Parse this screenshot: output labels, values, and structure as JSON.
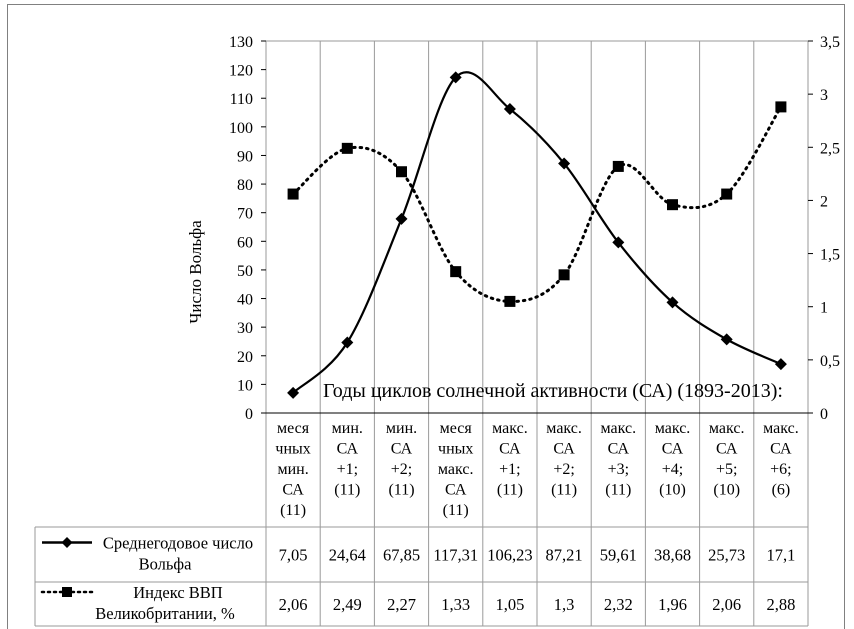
{
  "chart_data": {
    "type": "line",
    "title": "",
    "x_title": "Годы циклов солнечной активности (СА) (1893-2013):",
    "ylabel": "Число Вольфа",
    "ylim": [
      0,
      130
    ],
    "y_ticks": [
      0,
      10,
      20,
      30,
      40,
      50,
      60,
      70,
      80,
      90,
      100,
      110,
      120,
      130
    ],
    "y2lim": [
      0,
      3.5
    ],
    "y2_ticks": [
      "0",
      "0,5",
      "1",
      "1,5",
      "2",
      "2,5",
      "3",
      "3,5"
    ],
    "grid": "vertical",
    "categories": [
      [
        "меся",
        "чных",
        "мин.",
        "СА",
        "(11)"
      ],
      [
        "мин.",
        "СА",
        "+1;",
        "(11)"
      ],
      [
        "мин.",
        "СА",
        "+2;",
        "(11)"
      ],
      [
        "меся",
        "чных",
        "макс.",
        "СА",
        "(11)"
      ],
      [
        "макс.",
        "СА",
        "+1;",
        "(11)"
      ],
      [
        "макс.",
        "СА",
        "+2;",
        "(11)"
      ],
      [
        "макс.",
        "СА",
        "+3;",
        "(11)"
      ],
      [
        "макс.",
        "СА",
        "+4;",
        "(10)"
      ],
      [
        "макс.",
        "СА",
        "+5;",
        "(10)"
      ],
      [
        "макс.",
        "СА",
        "+6;",
        "(6)"
      ]
    ],
    "series": [
      {
        "name": [
          "Среднегодовое число",
          "Вольфа"
        ],
        "axis": "left",
        "marker": "diamond",
        "line": "solid",
        "values": [
          7.05,
          24.64,
          67.85,
          117.31,
          106.23,
          87.21,
          59.61,
          38.68,
          25.73,
          17.1
        ],
        "labels": [
          "7,05",
          "24,64",
          "67,85",
          "117,31",
          "106,23",
          "87,21",
          "59,61",
          "38,68",
          "25,73",
          "17,1"
        ]
      },
      {
        "name": [
          "Индекс ВВП",
          "Великобритании, %"
        ],
        "axis": "right",
        "marker": "square",
        "line": "dotted",
        "values": [
          2.06,
          2.49,
          2.27,
          1.33,
          1.05,
          1.3,
          2.32,
          1.96,
          2.06,
          2.88
        ],
        "labels": [
          "2,06",
          "2,49",
          "2,27",
          "1,33",
          "1,05",
          "1,3",
          "2,32",
          "1,96",
          "2,06",
          "2,88"
        ]
      }
    ],
    "colors": {
      "line": "#000000",
      "grid": "#9a9a9a",
      "border": "#808080"
    }
  }
}
